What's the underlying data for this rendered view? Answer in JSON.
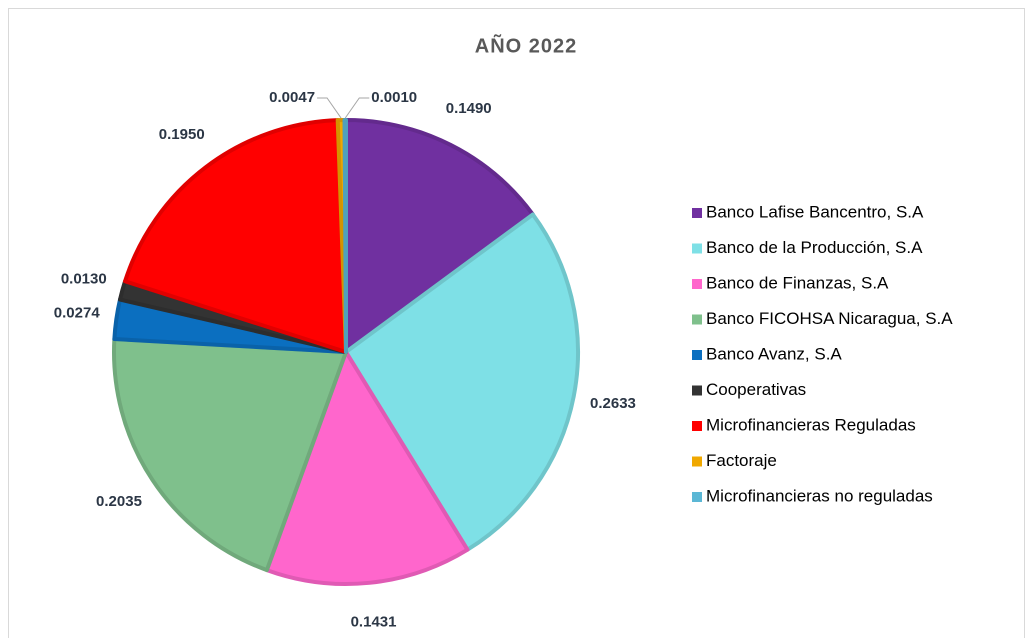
{
  "chart_data": {
    "type": "pie",
    "title": "AÑO 2022",
    "categories": [
      "Banco Lafise Bancentro, S.A",
      "Banco de la Producción, S.A",
      "Banco de Finanzas, S.A",
      "Banco FICOHSA Nicaragua, S.A",
      "Banco Avanz, S.A",
      "Cooperativas",
      "Microfinancieras Reguladas",
      "Factoraje",
      "Microfinancieras no reguladas"
    ],
    "values": [
      0.149,
      0.2633,
      0.1431,
      0.2035,
      0.0274,
      0.013,
      0.195,
      0.0047,
      0.001
    ],
    "value_labels": [
      "0.1490",
      "0.2633",
      "0.1431",
      "0.2035",
      "0.0274",
      "0.0130",
      "0.1950",
      "0.0047",
      "0.0010"
    ],
    "colors": [
      "#7030a0",
      "#7ee0e6",
      "#ff66cc",
      "#7fc08c",
      "#0b6fc0",
      "#333333",
      "#ff0000",
      "#f0a800",
      "#5bb7d5"
    ],
    "legend": "right"
  }
}
